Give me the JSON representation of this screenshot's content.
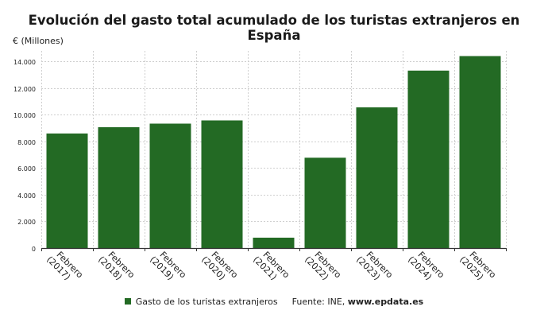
{
  "chart_data": {
    "type": "bar",
    "title": "Evolución del gasto total acumulado de los turistas extranjeros en España",
    "ylabel": "€ (Millones)",
    "xlabel": "",
    "categories": [
      "Febrero (2017)",
      "Febrero (2018)",
      "Febrero (2019)",
      "Febrero (2020)",
      "Febrero (2021)",
      "Febrero (2022)",
      "Febrero (2023)",
      "Febrero (2024)",
      "Febrero (2025)"
    ],
    "category_lines": [
      [
        "Febrero",
        "(2017)"
      ],
      [
        "Febrero",
        "(2018)"
      ],
      [
        "Febrero",
        "(2019)"
      ],
      [
        "Febrero",
        "(2020)"
      ],
      [
        "Febrero",
        "(2021)"
      ],
      [
        "Febrero",
        "(2022)"
      ],
      [
        "Febrero",
        "(2023)"
      ],
      [
        "Febrero",
        "(2024)"
      ],
      [
        "Febrero",
        "(2025)"
      ]
    ],
    "series": [
      {
        "name": "Gasto de los turistas extranjeros",
        "values": [
          8600,
          9070,
          9340,
          9580,
          780,
          6780,
          10560,
          13320,
          14410
        ]
      }
    ],
    "ylim": [
      0,
      14800
    ],
    "yticks": [
      0,
      2000,
      4000,
      6000,
      8000,
      10000,
      12000,
      14000
    ],
    "ytick_labels": [
      "0",
      "2.000",
      "4.000",
      "6.000",
      "8.000",
      "10.000",
      "12.000",
      "14.000"
    ],
    "grid": true,
    "legend_position": "bottom"
  },
  "colors": {
    "bar": "#236a24",
    "grid": "#cfcfcf",
    "axis": "#333333"
  },
  "legend": {
    "series_label": "Gasto de los turistas extranjeros",
    "source_prefix": "Fuente: INE,",
    "source_url": "www.epdata.es"
  }
}
